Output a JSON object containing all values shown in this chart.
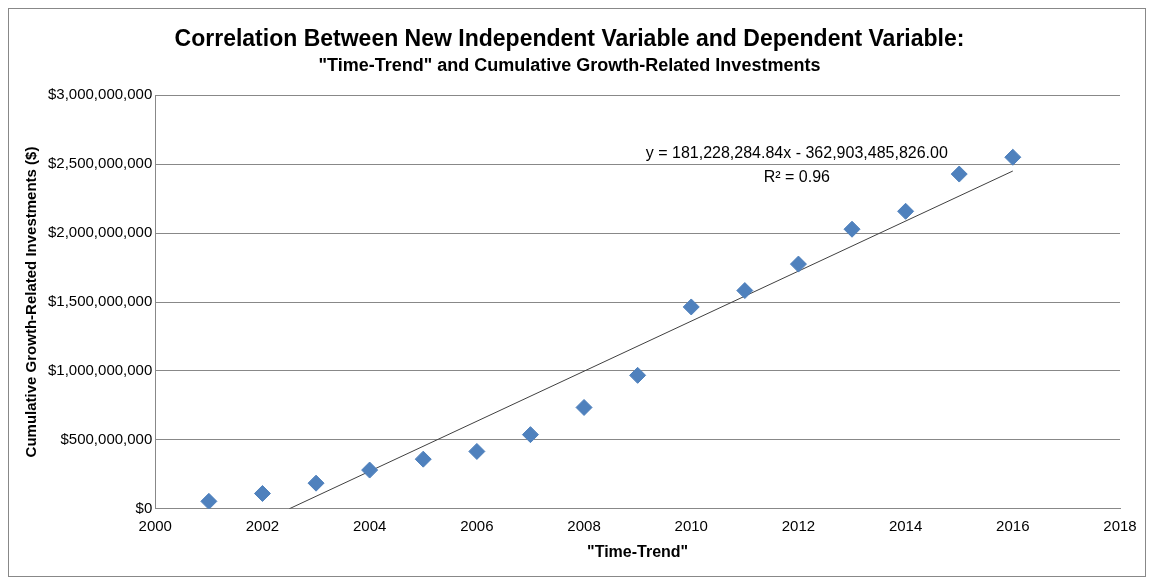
{
  "chart_data": {
    "type": "scatter",
    "title": "Correlation Between New Independent Variable and Dependent Variable:",
    "subtitle": "\"Time-Trend\" and Cumulative Growth-Related Investments",
    "xlabel": "\"Time-Trend\"",
    "ylabel": "Cumulative Growth-Related Investments ($)",
    "x": [
      2001,
      2002,
      2003,
      2004,
      2005,
      2006,
      2007,
      2008,
      2009,
      2010,
      2011,
      2012,
      2013,
      2014,
      2015,
      2016
    ],
    "series": [
      {
        "color": "#4f81bd",
        "marker": "diamond",
        "values": [
          54000000,
          111000000,
          186000000,
          281000000,
          360000000,
          416000000,
          538000000,
          735000000,
          968000000,
          1464000000,
          1583000000,
          1775000000,
          2028000000,
          2158000000,
          2428000000,
          2550000000
        ]
      },
      {
        "type": "line",
        "color": "#404040",
        "marker": "none",
        "x": [
          2002.5,
          2016
        ],
        "values": [
          0,
          2450000000
        ]
      }
    ],
    "xlim": [
      2000,
      2018
    ],
    "xticks": [
      2000,
      2002,
      2004,
      2006,
      2008,
      2010,
      2012,
      2014,
      2016,
      2018
    ],
    "ylim": [
      0,
      3000000000
    ],
    "yticks": [
      {
        "value": 0,
        "label": "$0"
      },
      {
        "value": 500000000,
        "label": "$500,000,000"
      },
      {
        "value": 1000000000,
        "label": "$1,000,000,000"
      },
      {
        "value": 1500000000,
        "label": "$1,500,000,000"
      },
      {
        "value": 2000000000,
        "label": "$2,000,000,000"
      },
      {
        "value": 2500000000,
        "label": "$2,500,000,000"
      },
      {
        "value": 3000000000,
        "label": "$3,000,000,000"
      }
    ],
    "grid": "y",
    "legend": false,
    "annotations": [
      "y = 181,228,284.84x - 362,903,485,826.00",
      "R² = 0.96"
    ]
  }
}
